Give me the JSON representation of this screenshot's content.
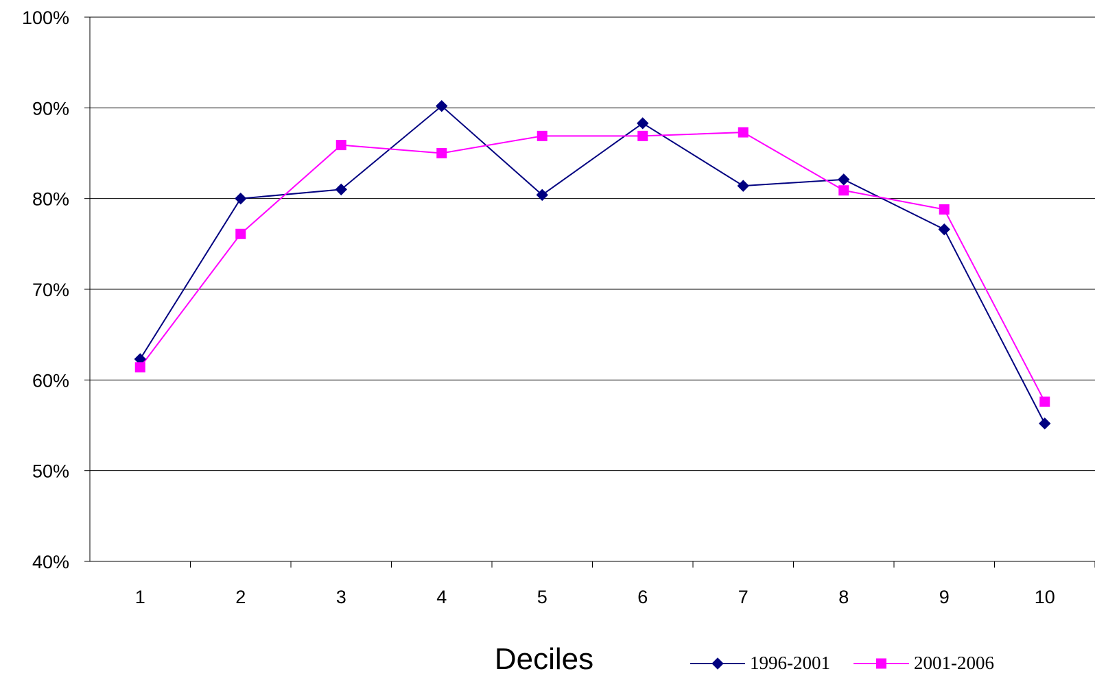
{
  "chart_data": {
    "type": "line",
    "title": "",
    "xlabel": "Deciles",
    "ylabel": "",
    "categories": [
      "1",
      "2",
      "3",
      "4",
      "5",
      "6",
      "7",
      "8",
      "9",
      "10"
    ],
    "ylim": [
      0.4,
      1.0
    ],
    "yticks": [
      {
        "value": 0.4,
        "label": "40%"
      },
      {
        "value": 0.5,
        "label": "50%"
      },
      {
        "value": 0.6,
        "label": "60%"
      },
      {
        "value": 0.7,
        "label": "70%"
      },
      {
        "value": 0.8,
        "label": "80%"
      },
      {
        "value": 0.9,
        "label": "90%"
      },
      {
        "value": 1.0,
        "label": "100%"
      }
    ],
    "grid": "horizontal",
    "legend_position": "bottom-right",
    "series": [
      {
        "name": "1996-2001",
        "color": "#000080",
        "marker": "diamond",
        "values": [
          0.623,
          0.8,
          0.81,
          0.902,
          0.804,
          0.883,
          0.814,
          0.821,
          0.766,
          0.552
        ]
      },
      {
        "name": "2001-2006",
        "color": "#FF00FF",
        "marker": "square",
        "values": [
          0.614,
          0.761,
          0.859,
          0.85,
          0.869,
          0.869,
          0.873,
          0.809,
          0.788,
          0.576
        ]
      }
    ]
  }
}
